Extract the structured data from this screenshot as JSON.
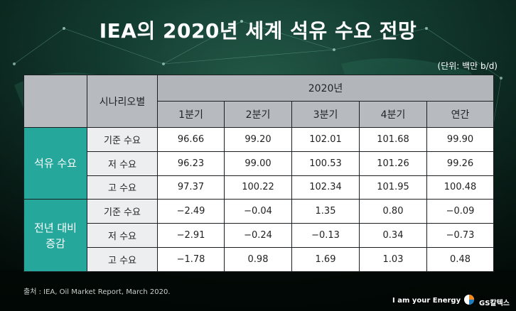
{
  "title": "IEA의 2020년 세계 석유 수요 전망",
  "unit": "(단위: 백만 b/d)",
  "table": {
    "year_header": "2020년",
    "scenario_header": "시나리오별",
    "columns": [
      "1분기",
      "2분기",
      "3분기",
      "4분기",
      "연간"
    ],
    "groups": [
      {
        "label": "석유 수요",
        "rows": [
          {
            "scenario": "기준 수요",
            "values": [
              "96.66",
              "99.20",
              "102.01",
              "101.68",
              "99.90"
            ]
          },
          {
            "scenario": "저 수요",
            "values": [
              "96.23",
              "99.00",
              "100.53",
              "101.26",
              "99.26"
            ]
          },
          {
            "scenario": "고 수요",
            "values": [
              "97.37",
              "100.22",
              "102.34",
              "101.95",
              "100.48"
            ]
          }
        ]
      },
      {
        "label_line1": "전년 대비",
        "label_line2": "증감",
        "rows": [
          {
            "scenario": "기준 수요",
            "values": [
              "−2.49",
              "−0.04",
              "1.35",
              "0.80",
              "−0.09"
            ]
          },
          {
            "scenario": "저 수요",
            "values": [
              "−2.91",
              "−0.24",
              "−0.13",
              "0.34",
              "−0.73"
            ]
          },
          {
            "scenario": "고 수요",
            "values": [
              "−1.78",
              "0.98",
              "1.69",
              "1.03",
              "0.48"
            ]
          }
        ]
      }
    ]
  },
  "source": "출처 : IEA, Oil Market Report, March 2020.",
  "footer": {
    "slogan": "I am your Energy",
    "brand": "GS칼텍스",
    "logo_icon": "gs-logo-icon"
  },
  "colors": {
    "accent": "#25a79c",
    "header_gray": "#b7bbbf",
    "background_dark": "#0b2a24"
  }
}
